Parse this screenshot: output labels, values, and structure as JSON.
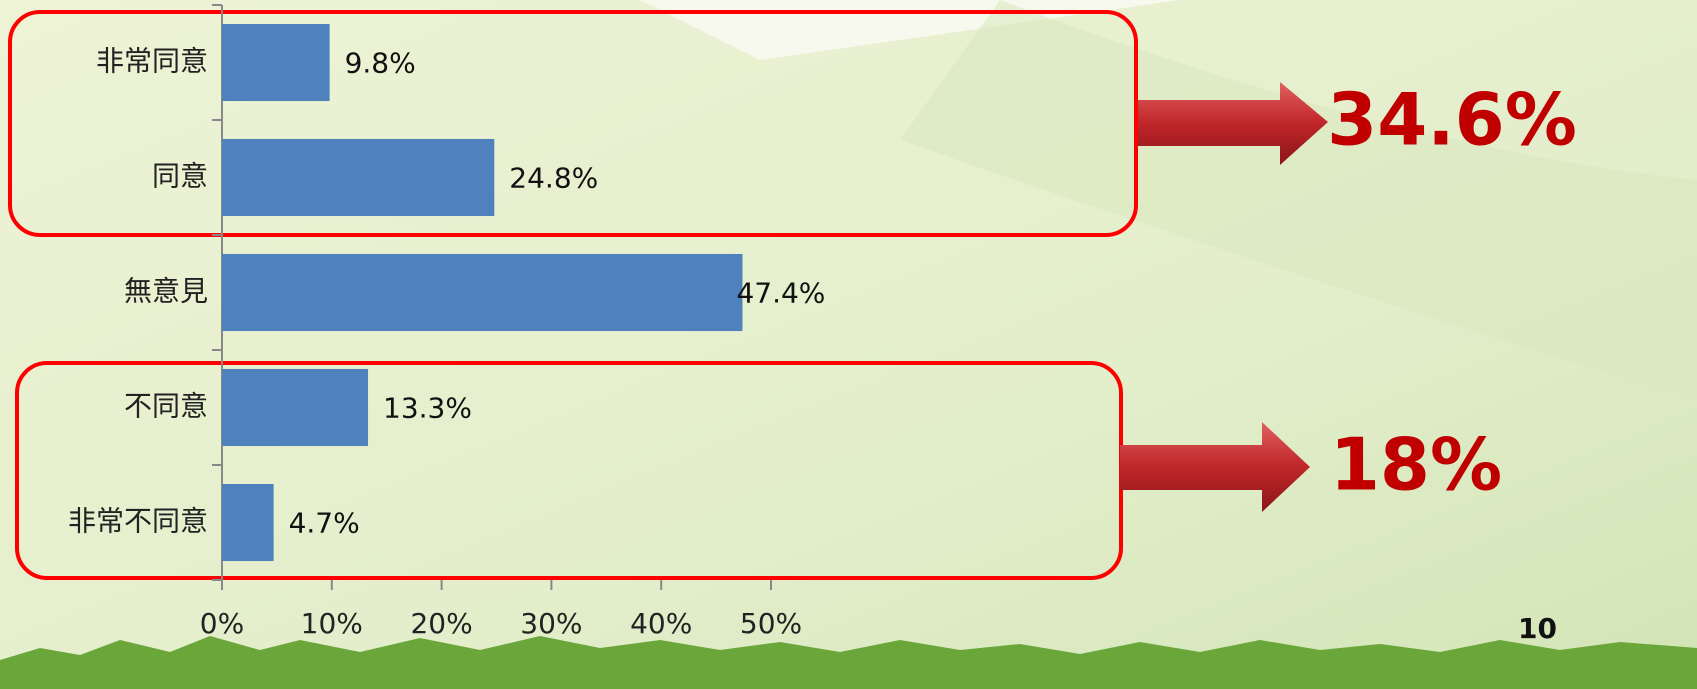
{
  "chart_data": {
    "type": "bar",
    "orientation": "horizontal",
    "categories": [
      "非常同意",
      "同意",
      "無意見",
      "不同意",
      "非常不同意"
    ],
    "values": [
      9.8,
      24.8,
      47.4,
      13.3,
      4.7
    ],
    "value_labels": [
      "9.8%",
      "24.8%",
      "47.4%",
      "13.3%",
      "4.7%"
    ],
    "color": "#4f81bd",
    "xlim": [
      0,
      50
    ],
    "xticks": [
      {
        "value": 0,
        "label": "0%"
      },
      {
        "value": 10,
        "label": "10%"
      },
      {
        "value": 20,
        "label": "20%"
      },
      {
        "value": 30,
        "label": "30%"
      },
      {
        "value": 40,
        "label": "40%"
      },
      {
        "value": 50,
        "label": "50%"
      }
    ],
    "annotations": [
      "34.6%",
      "18%"
    ]
  },
  "page_number": "10"
}
